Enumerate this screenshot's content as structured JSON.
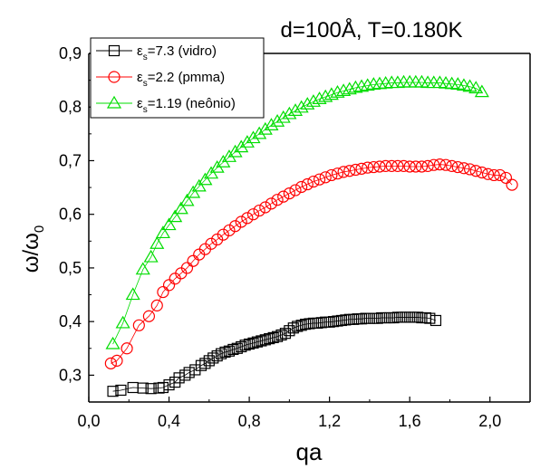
{
  "chart_data": {
    "type": "scatter",
    "title": "d=100Å, T=0.180K",
    "xlabel": "qa",
    "ylabel_main": "ω/ω",
    "ylabel_sub": "0",
    "xlim": [
      0.0,
      2.2
    ],
    "ylim": [
      0.25,
      0.9
    ],
    "xticks": [
      {
        "value": 0.0,
        "label": "0,0"
      },
      {
        "value": 0.4,
        "label": "0,4"
      },
      {
        "value": 0.8,
        "label": "0,8"
      },
      {
        "value": 1.2,
        "label": "1,2"
      },
      {
        "value": 1.6,
        "label": "1,6"
      },
      {
        "value": 2.0,
        "label": "2,0"
      }
    ],
    "yticks": [
      {
        "value": 0.3,
        "label": "0,3"
      },
      {
        "value": 0.4,
        "label": "0,4"
      },
      {
        "value": 0.5,
        "label": "0,5"
      },
      {
        "value": 0.6,
        "label": "0,6"
      },
      {
        "value": 0.7,
        "label": "0,7"
      },
      {
        "value": 0.8,
        "label": "0,8"
      },
      {
        "value": 0.9,
        "label": "0,9"
      }
    ],
    "grid": false,
    "legend_position": "top-left",
    "series": [
      {
        "name_prefix": "ε",
        "name_sub": "s",
        "name_suffix": "=7.3 (vidro)",
        "marker": "square",
        "color": "#000000",
        "x": [
          0.12,
          0.16,
          0.22,
          0.27,
          0.31,
          0.35,
          0.37,
          0.4,
          0.43,
          0.45,
          0.48,
          0.5,
          0.53,
          0.56,
          0.58,
          0.6,
          0.62,
          0.64,
          0.66,
          0.68,
          0.7,
          0.72,
          0.74,
          0.76,
          0.78,
          0.8,
          0.82,
          0.84,
          0.86,
          0.88,
          0.9,
          0.92,
          0.94,
          0.96,
          0.98,
          1.0,
          1.02,
          1.04,
          1.06,
          1.08,
          1.1,
          1.12,
          1.14,
          1.16,
          1.18,
          1.2,
          1.22,
          1.24,
          1.26,
          1.28,
          1.3,
          1.32,
          1.34,
          1.36,
          1.38,
          1.4,
          1.42,
          1.44,
          1.46,
          1.48,
          1.5,
          1.52,
          1.54,
          1.56,
          1.58,
          1.6,
          1.62,
          1.64,
          1.66,
          1.68,
          1.7,
          1.73
        ],
        "y": [
          0.27,
          0.272,
          0.277,
          0.276,
          0.275,
          0.276,
          0.277,
          0.282,
          0.287,
          0.295,
          0.3,
          0.305,
          0.31,
          0.318,
          0.322,
          0.327,
          0.332,
          0.336,
          0.34,
          0.343,
          0.345,
          0.348,
          0.35,
          0.353,
          0.356,
          0.358,
          0.36,
          0.362,
          0.364,
          0.366,
          0.368,
          0.37,
          0.372,
          0.375,
          0.378,
          0.383,
          0.388,
          0.391,
          0.393,
          0.395,
          0.396,
          0.397,
          0.397,
          0.398,
          0.399,
          0.399,
          0.4,
          0.401,
          0.402,
          0.403,
          0.404,
          0.404,
          0.405,
          0.405,
          0.406,
          0.406,
          0.406,
          0.406,
          0.407,
          0.407,
          0.407,
          0.407,
          0.408,
          0.408,
          0.408,
          0.408,
          0.408,
          0.408,
          0.407,
          0.407,
          0.406,
          0.402
        ]
      },
      {
        "name_prefix": "ε",
        "name_sub": "s",
        "name_suffix": "=2.2 (pmma)",
        "marker": "circle",
        "color": "#ff0000",
        "x": [
          0.11,
          0.14,
          0.19,
          0.25,
          0.3,
          0.34,
          0.37,
          0.4,
          0.43,
          0.46,
          0.49,
          0.52,
          0.55,
          0.58,
          0.61,
          0.64,
          0.67,
          0.7,
          0.73,
          0.76,
          0.79,
          0.82,
          0.85,
          0.88,
          0.91,
          0.94,
          0.97,
          1.0,
          1.03,
          1.06,
          1.09,
          1.12,
          1.15,
          1.18,
          1.21,
          1.24,
          1.27,
          1.3,
          1.33,
          1.36,
          1.39,
          1.42,
          1.45,
          1.48,
          1.51,
          1.54,
          1.57,
          1.6,
          1.63,
          1.66,
          1.69,
          1.72,
          1.75,
          1.78,
          1.81,
          1.84,
          1.87,
          1.9,
          1.93,
          1.96,
          1.99,
          2.02,
          2.05,
          2.08,
          2.11
        ],
        "y": [
          0.322,
          0.327,
          0.35,
          0.393,
          0.41,
          0.43,
          0.455,
          0.468,
          0.48,
          0.49,
          0.5,
          0.513,
          0.525,
          0.535,
          0.545,
          0.553,
          0.562,
          0.57,
          0.578,
          0.586,
          0.593,
          0.6,
          0.607,
          0.613,
          0.62,
          0.627,
          0.633,
          0.639,
          0.645,
          0.651,
          0.656,
          0.661,
          0.665,
          0.669,
          0.673,
          0.676,
          0.679,
          0.681,
          0.683,
          0.685,
          0.687,
          0.688,
          0.689,
          0.69,
          0.69,
          0.69,
          0.69,
          0.689,
          0.689,
          0.689,
          0.69,
          0.692,
          0.693,
          0.692,
          0.69,
          0.688,
          0.686,
          0.684,
          0.681,
          0.678,
          0.675,
          0.673,
          0.673,
          0.668,
          0.655
        ]
      },
      {
        "name_prefix": "ε",
        "name_sub": "s",
        "name_suffix": "=1.19 (neônio)",
        "marker": "triangle",
        "color": "#00dd00",
        "x": [
          0.12,
          0.17,
          0.22,
          0.27,
          0.31,
          0.34,
          0.37,
          0.4,
          0.43,
          0.46,
          0.49,
          0.52,
          0.55,
          0.58,
          0.61,
          0.64,
          0.67,
          0.7,
          0.73,
          0.76,
          0.79,
          0.82,
          0.85,
          0.88,
          0.91,
          0.94,
          0.97,
          1.0,
          1.03,
          1.06,
          1.09,
          1.12,
          1.15,
          1.18,
          1.21,
          1.24,
          1.27,
          1.3,
          1.33,
          1.36,
          1.39,
          1.42,
          1.45,
          1.48,
          1.51,
          1.54,
          1.57,
          1.6,
          1.63,
          1.66,
          1.69,
          1.72,
          1.75,
          1.78,
          1.81,
          1.84,
          1.87,
          1.9,
          1.93,
          1.96
        ],
        "y": [
          0.358,
          0.397,
          0.45,
          0.497,
          0.52,
          0.545,
          0.565,
          0.58,
          0.595,
          0.61,
          0.625,
          0.64,
          0.652,
          0.664,
          0.676,
          0.687,
          0.697,
          0.707,
          0.716,
          0.725,
          0.734,
          0.742,
          0.75,
          0.758,
          0.766,
          0.773,
          0.78,
          0.787,
          0.793,
          0.799,
          0.805,
          0.81,
          0.815,
          0.819,
          0.823,
          0.827,
          0.83,
          0.833,
          0.836,
          0.838,
          0.84,
          0.842,
          0.843,
          0.844,
          0.845,
          0.845,
          0.846,
          0.846,
          0.846,
          0.846,
          0.845,
          0.845,
          0.845,
          0.844,
          0.843,
          0.842,
          0.84,
          0.838,
          0.835,
          0.828
        ]
      }
    ]
  }
}
